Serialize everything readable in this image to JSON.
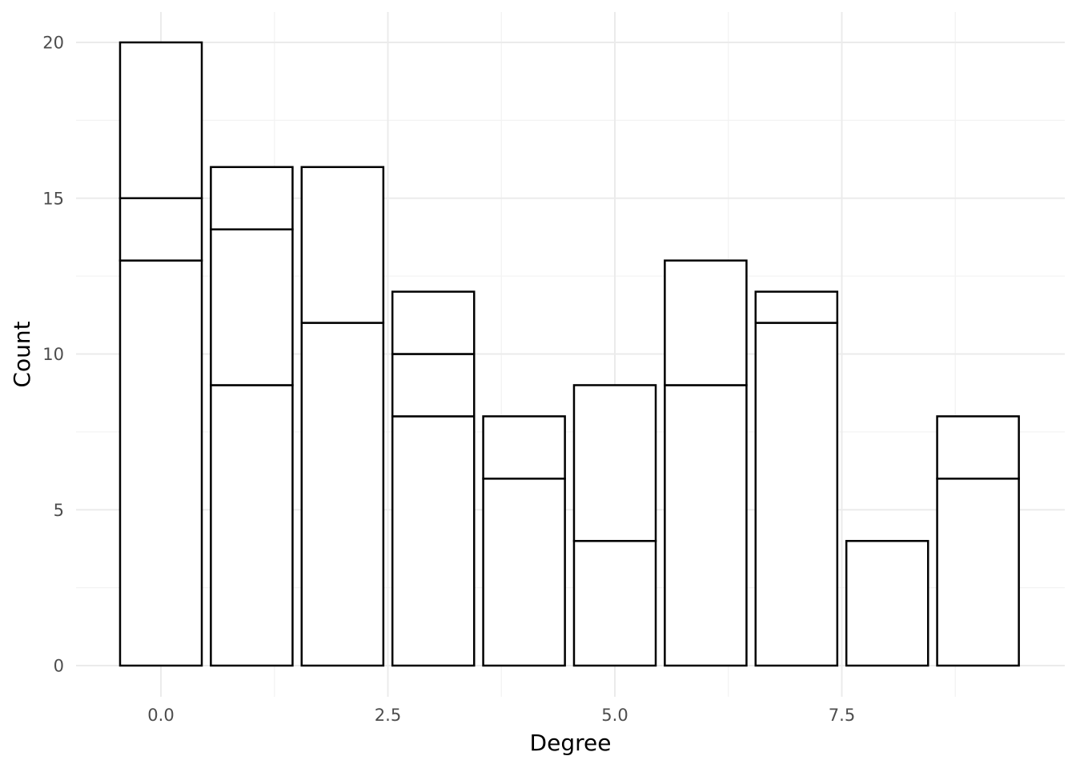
{
  "chart_data": {
    "type": "bar",
    "stacked": true,
    "xlabel": "Degree",
    "ylabel": "Count",
    "xlim": [
      -0.5,
      9.5
    ],
    "ylim": [
      0,
      20
    ],
    "x_ticks": [
      0.0,
      2.5,
      5.0,
      7.5
    ],
    "x_tick_labels": [
      "0.0",
      "2.5",
      "5.0",
      "7.5"
    ],
    "y_ticks": [
      0,
      5,
      10,
      15,
      20
    ],
    "y_tick_labels": [
      "0",
      "5",
      "10",
      "15",
      "20"
    ],
    "grid": true,
    "legend": "none",
    "bars": [
      {
        "x": 0,
        "total": 20,
        "boundaries": [
          13,
          15,
          20
        ]
      },
      {
        "x": 1,
        "total": 16,
        "boundaries": [
          9,
          14,
          16
        ]
      },
      {
        "x": 2,
        "total": 16,
        "boundaries": [
          11,
          16
        ]
      },
      {
        "x": 3,
        "total": 12,
        "boundaries": [
          8,
          10,
          12
        ]
      },
      {
        "x": 4,
        "total": 8,
        "boundaries": [
          6,
          8
        ]
      },
      {
        "x": 5,
        "total": 9,
        "boundaries": [
          4,
          9
        ]
      },
      {
        "x": 6,
        "total": 13,
        "boundaries": [
          9,
          13
        ]
      },
      {
        "x": 7,
        "total": 12,
        "boundaries": [
          11,
          12
        ]
      },
      {
        "x": 8,
        "total": 4,
        "boundaries": [
          4
        ]
      },
      {
        "x": 9,
        "total": 8,
        "boundaries": [
          6,
          8
        ]
      }
    ],
    "colors": {
      "fill": "#ffffff",
      "stroke": "#000000",
      "grid_major": "#ebebeb",
      "grid_minor": "#f3f3f3",
      "tick_text": "#4d4d4d",
      "title_text": "#000000"
    }
  }
}
